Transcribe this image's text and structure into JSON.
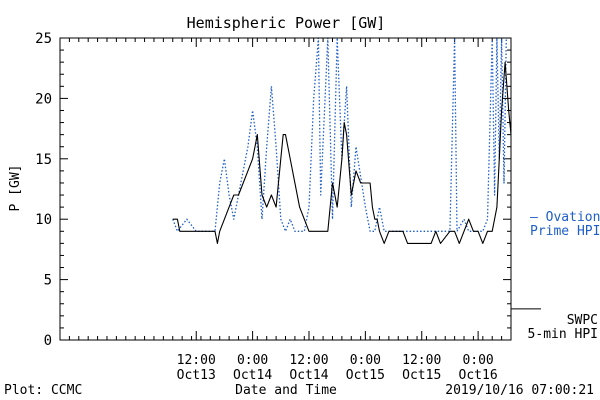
{
  "chart_data": {
    "type": "line",
    "title": "Hemispheric Power [GW]",
    "xlabel": "Date and Time",
    "ylabel": "P [GW]",
    "ylim": [
      0,
      25
    ],
    "yticks": [
      0,
      5,
      10,
      15,
      20,
      25
    ],
    "xlim": [
      "2019-10-12T07:00",
      "2019-10-16T07:00"
    ],
    "xticks": [
      {
        "time": "2019-10-13T12:00",
        "line1": "12:00",
        "line2": "Oct13"
      },
      {
        "time": "2019-10-14T00:00",
        "line1": "0:00",
        "line2": "Oct14"
      },
      {
        "time": "2019-10-14T12:00",
        "line1": "12:00",
        "line2": "Oct14"
      },
      {
        "time": "2019-10-15T00:00",
        "line1": "0:00",
        "line2": "Oct15"
      },
      {
        "time": "2019-10-15T12:00",
        "line1": "12:00",
        "line2": "Oct15"
      },
      {
        "time": "2019-10-16T00:00",
        "line1": "0:00",
        "line2": "Oct16"
      }
    ],
    "grid": false,
    "legend_placement": "right",
    "series": [
      {
        "name": "SWPC 5-min HPI",
        "legend_lines": [
          "SWPC",
          "5-min HPI"
        ],
        "color": "#000000",
        "style": "solid",
        "points": [
          [
            "2019-10-13T07:00",
            10
          ],
          [
            "2019-10-13T08:00",
            10
          ],
          [
            "2019-10-13T08:30",
            9
          ],
          [
            "2019-10-13T16:00",
            9
          ],
          [
            "2019-10-13T16:30",
            8
          ],
          [
            "2019-10-13T17:00",
            9
          ],
          [
            "2019-10-13T18:00",
            10
          ],
          [
            "2019-10-13T19:00",
            11
          ],
          [
            "2019-10-13T20:00",
            12
          ],
          [
            "2019-10-13T21:00",
            12
          ],
          [
            "2019-10-13T22:00",
            13
          ],
          [
            "2019-10-13T23:00",
            14
          ],
          [
            "2019-10-14T00:00",
            15
          ],
          [
            "2019-10-14T00:30",
            16
          ],
          [
            "2019-10-14T01:00",
            17
          ],
          [
            "2019-10-14T02:00",
            12
          ],
          [
            "2019-10-14T03:00",
            11
          ],
          [
            "2019-10-14T04:00",
            12
          ],
          [
            "2019-10-14T05:00",
            11
          ],
          [
            "2019-10-14T06:00",
            15
          ],
          [
            "2019-10-14T06:30",
            17
          ],
          [
            "2019-10-14T07:00",
            17
          ],
          [
            "2019-10-14T08:00",
            15
          ],
          [
            "2019-10-14T09:00",
            13
          ],
          [
            "2019-10-14T10:00",
            11
          ],
          [
            "2019-10-14T11:00",
            10
          ],
          [
            "2019-10-14T12:00",
            9
          ],
          [
            "2019-10-14T14:00",
            9
          ],
          [
            "2019-10-14T16:00",
            9
          ],
          [
            "2019-10-14T17:00",
            13
          ],
          [
            "2019-10-14T18:00",
            11
          ],
          [
            "2019-10-14T19:00",
            15
          ],
          [
            "2019-10-14T19:30",
            18
          ],
          [
            "2019-10-14T20:00",
            17
          ],
          [
            "2019-10-14T21:00",
            12
          ],
          [
            "2019-10-14T22:00",
            14
          ],
          [
            "2019-10-14T23:00",
            13
          ],
          [
            "2019-10-15T01:00",
            13
          ],
          [
            "2019-10-15T01:30",
            11
          ],
          [
            "2019-10-15T02:00",
            10
          ],
          [
            "2019-10-15T02:30",
            10
          ],
          [
            "2019-10-15T03:00",
            9
          ],
          [
            "2019-10-15T04:00",
            8
          ],
          [
            "2019-10-15T05:00",
            9
          ],
          [
            "2019-10-15T08:00",
            9
          ],
          [
            "2019-10-15T09:00",
            8
          ],
          [
            "2019-10-15T14:00",
            8
          ],
          [
            "2019-10-15T15:00",
            9
          ],
          [
            "2019-10-15T16:00",
            8
          ],
          [
            "2019-10-15T18:00",
            9
          ],
          [
            "2019-10-15T19:00",
            9
          ],
          [
            "2019-10-15T20:00",
            8
          ],
          [
            "2019-10-15T22:00",
            10
          ],
          [
            "2019-10-15T23:00",
            9
          ],
          [
            "2019-10-16T00:00",
            9
          ],
          [
            "2019-10-16T01:00",
            8
          ],
          [
            "2019-10-16T02:00",
            9
          ],
          [
            "2019-10-16T03:00",
            9
          ],
          [
            "2019-10-16T04:00",
            11
          ],
          [
            "2019-10-16T04:30",
            15
          ],
          [
            "2019-10-16T05:00",
            19
          ],
          [
            "2019-10-16T05:45",
            23
          ],
          [
            "2019-10-16T06:30",
            19
          ],
          [
            "2019-10-16T07:00",
            17
          ]
        ]
      },
      {
        "name": "Ovation Prime HPI",
        "legend_lines": [
          "— Ovation",
          "Prime HPI"
        ],
        "color": "#1f5fc8",
        "style": "dotted",
        "points": [
          [
            "2019-10-13T07:00",
            10
          ],
          [
            "2019-10-13T08:00",
            9
          ],
          [
            "2019-10-13T10:00",
            10
          ],
          [
            "2019-10-13T12:00",
            9
          ],
          [
            "2019-10-13T16:00",
            9
          ],
          [
            "2019-10-13T17:00",
            13
          ],
          [
            "2019-10-13T18:00",
            15
          ],
          [
            "2019-10-13T19:00",
            12
          ],
          [
            "2019-10-13T20:00",
            10
          ],
          [
            "2019-10-13T21:00",
            12
          ],
          [
            "2019-10-13T22:00",
            14
          ],
          [
            "2019-10-13T23:00",
            16
          ],
          [
            "2019-10-14T00:00",
            19
          ],
          [
            "2019-10-14T01:00",
            16
          ],
          [
            "2019-10-14T02:00",
            10
          ],
          [
            "2019-10-14T03:00",
            16
          ],
          [
            "2019-10-14T04:00",
            21
          ],
          [
            "2019-10-14T05:00",
            16
          ],
          [
            "2019-10-14T06:00",
            10
          ],
          [
            "2019-10-14T07:00",
            9
          ],
          [
            "2019-10-14T08:00",
            10
          ],
          [
            "2019-10-14T09:00",
            9
          ],
          [
            "2019-10-14T11:00",
            9
          ],
          [
            "2019-10-14T12:00",
            11
          ],
          [
            "2019-10-14T13:00",
            20
          ],
          [
            "2019-10-14T14:00",
            25
          ],
          [
            "2019-10-14T14:30",
            12
          ],
          [
            "2019-10-14T16:00",
            25
          ],
          [
            "2019-10-14T17:00",
            10
          ],
          [
            "2019-10-14T18:00",
            25
          ],
          [
            "2019-10-14T19:00",
            15
          ],
          [
            "2019-10-14T20:00",
            21
          ],
          [
            "2019-10-14T21:00",
            11
          ],
          [
            "2019-10-14T22:00",
            16
          ],
          [
            "2019-10-15T00:00",
            11
          ],
          [
            "2019-10-15T01:00",
            9
          ],
          [
            "2019-10-15T02:00",
            9
          ],
          [
            "2019-10-15T03:00",
            11
          ],
          [
            "2019-10-15T04:00",
            9
          ],
          [
            "2019-10-15T09:00",
            9
          ],
          [
            "2019-10-15T10:00",
            9
          ],
          [
            "2019-10-15T14:00",
            9
          ],
          [
            "2019-10-15T15:00",
            9
          ],
          [
            "2019-10-15T18:00",
            9
          ],
          [
            "2019-10-15T19:00",
            25
          ],
          [
            "2019-10-15T19:30",
            9
          ],
          [
            "2019-10-15T21:00",
            10
          ],
          [
            "2019-10-15T22:00",
            9
          ],
          [
            "2019-10-16T01:00",
            9
          ],
          [
            "2019-10-16T02:00",
            10
          ],
          [
            "2019-10-16T03:00",
            25
          ],
          [
            "2019-10-16T03:30",
            12
          ],
          [
            "2019-10-16T04:00",
            25
          ],
          [
            "2019-10-16T04:30",
            15
          ],
          [
            "2019-10-16T05:00",
            25
          ],
          [
            "2019-10-16T05:30",
            13
          ],
          [
            "2019-10-16T06:00",
            25
          ],
          [
            "2019-10-16T07:00",
            25
          ]
        ]
      }
    ]
  },
  "footer": {
    "plot_credit": "Plot: CCMC",
    "timestamp": "2019/10/16 07:00:21"
  }
}
